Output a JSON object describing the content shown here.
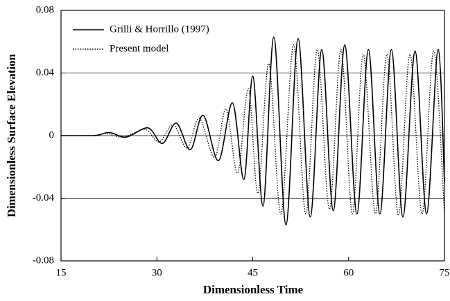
{
  "chart_data": {
    "type": "line",
    "xlabel": "Dimensionless Time",
    "ylabel": "Dimensionless Surface Elevation",
    "xlim": [
      15,
      75
    ],
    "xticks": [
      15,
      30,
      45,
      60,
      75
    ],
    "ylim": [
      -0.08,
      0.08
    ],
    "yticks": [
      -0.08,
      -0.04,
      0,
      0.04,
      0.08
    ],
    "grid": true,
    "legend": "upper left",
    "series": [
      {
        "name": "Grilli & Horrillo (1997)",
        "color": "#000000",
        "style": "solid",
        "x": [
          15,
          20,
          22.5,
          25,
          28.5,
          30.8,
          33,
          35.2,
          37.2,
          39.6,
          41.8,
          43.6,
          45.0,
          46.6,
          48.3,
          50.2,
          52.1,
          54.0,
          55.8,
          57.6,
          59.4,
          61.3,
          63.1,
          64.9,
          66.7,
          68.5,
          70.4,
          72.2,
          74.0,
          75
        ],
        "values": [
          0,
          0,
          0.002,
          -0.001,
          0.005,
          -0.005,
          0.008,
          -0.009,
          0.013,
          -0.016,
          0.021,
          -0.028,
          0.038,
          -0.045,
          0.063,
          -0.057,
          0.062,
          -0.052,
          0.055,
          -0.048,
          0.058,
          -0.05,
          0.055,
          -0.05,
          0.055,
          -0.052,
          0.054,
          -0.05,
          0.055,
          -0.03
        ]
      },
      {
        "name": "Present model",
        "color": "#000000",
        "style": "dotted",
        "x": [
          15,
          20,
          22,
          24.5,
          28,
          30.3,
          32.5,
          34.7,
          36.6,
          39,
          40.8,
          42.6,
          44.3,
          45.8,
          47.5,
          49.4,
          51.4,
          53.3,
          55.1,
          57.0,
          58.8,
          60.6,
          62.3,
          64.2,
          66.0,
          67.8,
          69.6,
          71.5,
          73.3,
          75
        ],
        "values": [
          0,
          0,
          0.0015,
          -0.001,
          0.004,
          -0.004,
          0.007,
          -0.008,
          0.011,
          -0.014,
          0.017,
          -0.024,
          0.03,
          -0.037,
          0.046,
          -0.05,
          0.058,
          -0.05,
          0.055,
          -0.047,
          0.055,
          -0.05,
          0.052,
          -0.05,
          0.052,
          -0.051,
          0.052,
          -0.05,
          0.054,
          -0.05
        ]
      }
    ]
  }
}
